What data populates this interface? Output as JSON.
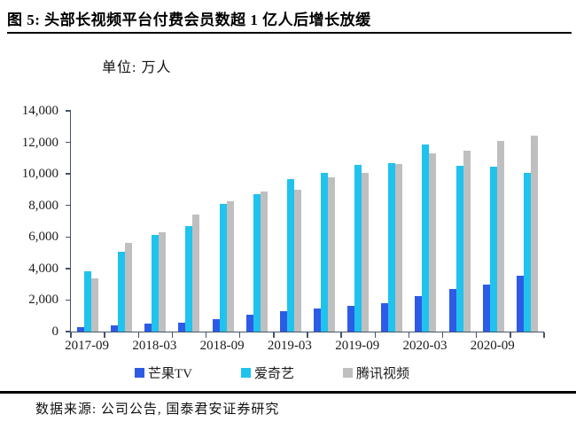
{
  "title": "图 5:  头部长视频平台付费会员数超 1 亿人后增长放缓",
  "unit_label": "单位: 万人",
  "footer": "数据来源: 公司公告, 国泰君安证券研究",
  "colors": {
    "mango_blue": "#2E5BE6",
    "iqiyi_cyan": "#20C2EE",
    "tencent_gray": "#BFBFBF",
    "axis": "#44546A"
  },
  "chart_data": {
    "type": "bar",
    "title": "头部长视频平台付费会员数超 1 亿人后增长放缓",
    "unit": "万人",
    "categories": [
      "2017-09",
      "2017-12",
      "2018-03",
      "2018-06",
      "2018-09",
      "2018-12",
      "2019-03",
      "2019-06",
      "2019-09",
      "2019-12",
      "2020-03",
      "2020-06",
      "2020-09",
      "2020-12"
    ],
    "x_tick_labels": [
      "2017-09",
      "2018-03",
      "2018-09",
      "2019-03",
      "2019-09",
      "2020-03",
      "2020-09"
    ],
    "x_tick_label_indices": [
      0,
      2,
      4,
      6,
      8,
      10,
      12
    ],
    "series": [
      {
        "name": "芒果TV",
        "color": "#2E5BE6",
        "values": [
          300,
          400,
          500,
          550,
          800,
          1050,
          1300,
          1450,
          1650,
          1800,
          2250,
          2700,
          3000,
          3550
        ]
      },
      {
        "name": "爱奇艺",
        "color": "#20C2EE",
        "values": [
          3800,
          5080,
          6130,
          6710,
          8070,
          8740,
          9680,
          10050,
          10580,
          10690,
          11890,
          10500,
          10480,
          10050
        ]
      },
      {
        "name": "腾讯视频",
        "color": "#BFBFBF",
        "values": [
          3350,
          5650,
          6300,
          7400,
          8250,
          8900,
          9000,
          9800,
          10050,
          10600,
          11300,
          11450,
          12100,
          12400
        ]
      }
    ],
    "ylim": [
      0,
      14000
    ],
    "y_ticks": [
      0,
      2000,
      4000,
      6000,
      8000,
      10000,
      12000,
      14000
    ],
    "grid": false,
    "legend_position": "bottom"
  }
}
